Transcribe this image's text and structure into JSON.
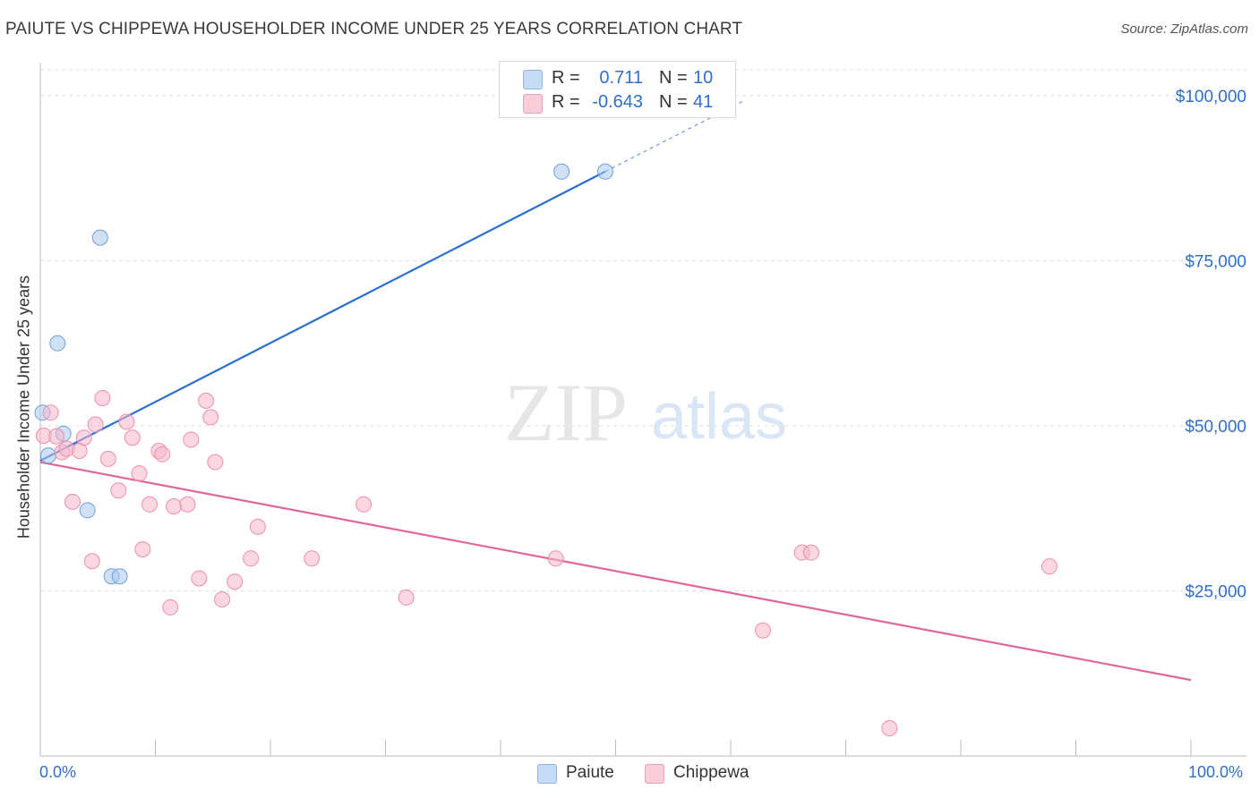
{
  "title": "PAIUTE VS CHIPPEWA HOUSEHOLDER INCOME UNDER 25 YEARS CORRELATION CHART",
  "source": "Source: ZipAtlas.com",
  "watermark": {
    "part1": "ZIP",
    "part2": "atlas"
  },
  "legend": {
    "rows": [
      {
        "r_label": "R =",
        "r_value": "0.711",
        "n_label": "N =",
        "n_value": "10",
        "color": "#a9c8ef"
      },
      {
        "r_label": "R =",
        "r_value": "-0.643",
        "n_label": "N =",
        "n_value": "41",
        "color": "#f5b7c8"
      }
    ]
  },
  "bottom_legend": {
    "paiute": "Paiute",
    "chippewa": "Chippewa"
  },
  "x_tick_labels": {
    "min": "0.0%",
    "max": "100.0%"
  },
  "chart_data": {
    "type": "scatter",
    "title": "PAIUTE VS CHIPPEWA HOUSEHOLDER INCOME UNDER 25 YEARS CORRELATION CHART",
    "xlabel": "",
    "ylabel": "Householder Income Under 25 years",
    "xlim": [
      0,
      100
    ],
    "ylim": [
      0,
      105000
    ],
    "y_ticks": [
      {
        "value": 25000,
        "label": "$25,000"
      },
      {
        "value": 50000,
        "label": "$50,000"
      },
      {
        "value": 75000,
        "label": "$75,000"
      },
      {
        "value": 100000,
        "label": "$100,000"
      }
    ],
    "grid": true,
    "legend_position": "top-center",
    "series": [
      {
        "name": "Paiute",
        "color": "#a9c8ef",
        "stroke": "#6f9fd8",
        "line_color": "#2a6fd0",
        "points": [
          {
            "x": 0.2,
            "y": 52000
          },
          {
            "x": 0.7,
            "y": 45500
          },
          {
            "x": 2.0,
            "y": 48800
          },
          {
            "x": 1.5,
            "y": 62500
          },
          {
            "x": 5.2,
            "y": 78500
          },
          {
            "x": 4.1,
            "y": 37200
          },
          {
            "x": 6.2,
            "y": 27200
          },
          {
            "x": 6.9,
            "y": 27200
          },
          {
            "x": 45.3,
            "y": 88500
          },
          {
            "x": 49.1,
            "y": 88500
          }
        ],
        "trend": {
          "x1": 0,
          "y1": 44700,
          "x2": 49.1,
          "y2": 88500,
          "dash_to_x": 61.0,
          "dash_to_y": 99100
        }
      },
      {
        "name": "Chippewa",
        "color": "#f5b7c8",
        "stroke": "#ec8fab",
        "line_color": "#e0679a",
        "points": [
          {
            "x": 0.3,
            "y": 48500
          },
          {
            "x": 0.9,
            "y": 52000
          },
          {
            "x": 1.4,
            "y": 48400
          },
          {
            "x": 1.9,
            "y": 46000
          },
          {
            "x": 2.3,
            "y": 46500
          },
          {
            "x": 2.8,
            "y": 38500
          },
          {
            "x": 3.4,
            "y": 46200
          },
          {
            "x": 3.8,
            "y": 48200
          },
          {
            "x": 4.5,
            "y": 29500
          },
          {
            "x": 4.8,
            "y": 50200
          },
          {
            "x": 5.4,
            "y": 54200
          },
          {
            "x": 5.9,
            "y": 45000
          },
          {
            "x": 6.8,
            "y": 40200
          },
          {
            "x": 7.5,
            "y": 50600
          },
          {
            "x": 8.0,
            "y": 48200
          },
          {
            "x": 8.6,
            "y": 42800
          },
          {
            "x": 8.9,
            "y": 31300
          },
          {
            "x": 9.5,
            "y": 38100
          },
          {
            "x": 10.3,
            "y": 46200
          },
          {
            "x": 10.6,
            "y": 45700
          },
          {
            "x": 11.3,
            "y": 22500
          },
          {
            "x": 11.6,
            "y": 37800
          },
          {
            "x": 12.8,
            "y": 38100
          },
          {
            "x": 13.1,
            "y": 47900
          },
          {
            "x": 13.8,
            "y": 26900
          },
          {
            "x": 14.4,
            "y": 53800
          },
          {
            "x": 14.8,
            "y": 51300
          },
          {
            "x": 15.2,
            "y": 44500
          },
          {
            "x": 15.8,
            "y": 23700
          },
          {
            "x": 16.9,
            "y": 26400
          },
          {
            "x": 18.3,
            "y": 29900
          },
          {
            "x": 18.9,
            "y": 34700
          },
          {
            "x": 23.6,
            "y": 29900
          },
          {
            "x": 28.1,
            "y": 38100
          },
          {
            "x": 31.8,
            "y": 24000
          },
          {
            "x": 44.8,
            "y": 29900
          },
          {
            "x": 62.8,
            "y": 19000
          },
          {
            "x": 66.2,
            "y": 30800
          },
          {
            "x": 67.0,
            "y": 30800
          },
          {
            "x": 73.8,
            "y": 4200
          },
          {
            "x": 87.7,
            "y": 28700
          }
        ],
        "trend": {
          "x1": 0,
          "y1": 44500,
          "x2": 100,
          "y2": 11500
        }
      }
    ]
  }
}
